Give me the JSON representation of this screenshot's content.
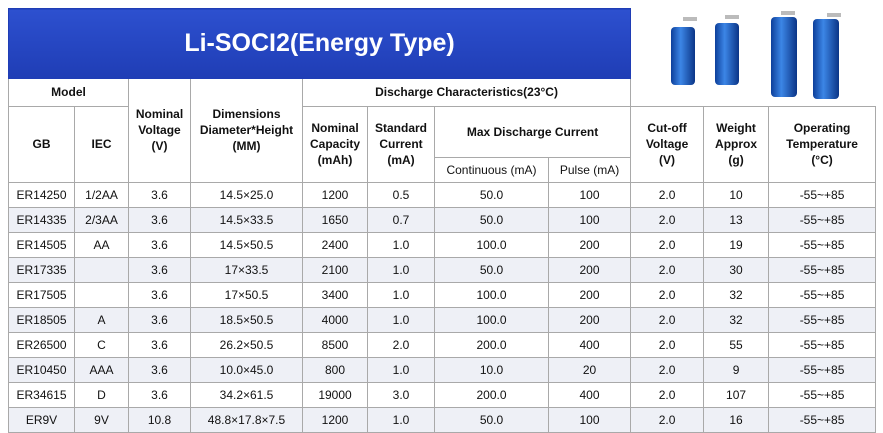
{
  "title": "Li-SOCI2(Energy Type)",
  "header": {
    "model": "Model",
    "gb": "GB",
    "iec": "IEC",
    "voltage": [
      "Nominal",
      "Voltage",
      "(V)"
    ],
    "dimensions": [
      "Dimensions",
      "Diameter*Height",
      "(MM)"
    ],
    "discharge": "Discharge Characteristics(23°C)",
    "capacity": [
      "Nominal",
      "Capacity",
      "(mAh)"
    ],
    "standard": [
      "Standard",
      "Current",
      "(mA)"
    ],
    "max": "Max Discharge Current",
    "continuous": "Continuous (mA)",
    "pulse": "Pulse (mA)",
    "cutoff": [
      "Cut-off",
      "Voltage",
      "(V)"
    ],
    "weight": [
      "Weight",
      "Approx",
      "(g)"
    ],
    "operating": [
      "Operating",
      "Temperature",
      "(°C)"
    ]
  },
  "table": {
    "rows": [
      [
        "ER14250",
        "1/2AA",
        "3.6",
        "14.5×25.0",
        "1200",
        "0.5",
        "50.0",
        "100",
        "2.0",
        "10",
        "-55~+85"
      ],
      [
        "ER14335",
        "2/3AA",
        "3.6",
        "14.5×33.5",
        "1650",
        "0.7",
        "50.0",
        "100",
        "2.0",
        "13",
        "-55~+85"
      ],
      [
        "ER14505",
        "AA",
        "3.6",
        "14.5×50.5",
        "2400",
        "1.0",
        "100.0",
        "200",
        "2.0",
        "19",
        "-55~+85"
      ],
      [
        "ER17335",
        null,
        "3.6",
        "17×33.5",
        "2100",
        "1.0",
        "50.0",
        "200",
        "2.0",
        "30",
        "-55~+85"
      ],
      [
        "ER17505",
        null,
        "3.6",
        "17×50.5",
        "3400",
        "1.0",
        "100.0",
        "200",
        "2.0",
        "32",
        "-55~+85"
      ],
      [
        "ER18505",
        "A",
        "3.6",
        "18.5×50.5",
        "4000",
        "1.0",
        "100.0",
        "200",
        "2.0",
        "32",
        "-55~+85"
      ],
      [
        "ER26500",
        "C",
        "3.6",
        "26.2×50.5",
        "8500",
        "2.0",
        "200.0",
        "400",
        "2.0",
        "55",
        "-55~+85"
      ],
      [
        "ER10450",
        "AAA",
        "3.6",
        "10.0×45.0",
        "800",
        "1.0",
        "10.0",
        "20",
        "2.0",
        "9",
        "-55~+85"
      ],
      [
        "ER34615",
        "D",
        "3.6",
        "34.2×61.5",
        "19000",
        "3.0",
        "200.0",
        "400",
        "2.0",
        "107",
        "-55~+85"
      ],
      [
        "ER9V",
        "9V",
        "10.8",
        "48.8×17.8×7.5",
        "1200",
        "1.0",
        "50.0",
        "100",
        "2.0",
        "16",
        "-55~+85"
      ]
    ]
  }
}
